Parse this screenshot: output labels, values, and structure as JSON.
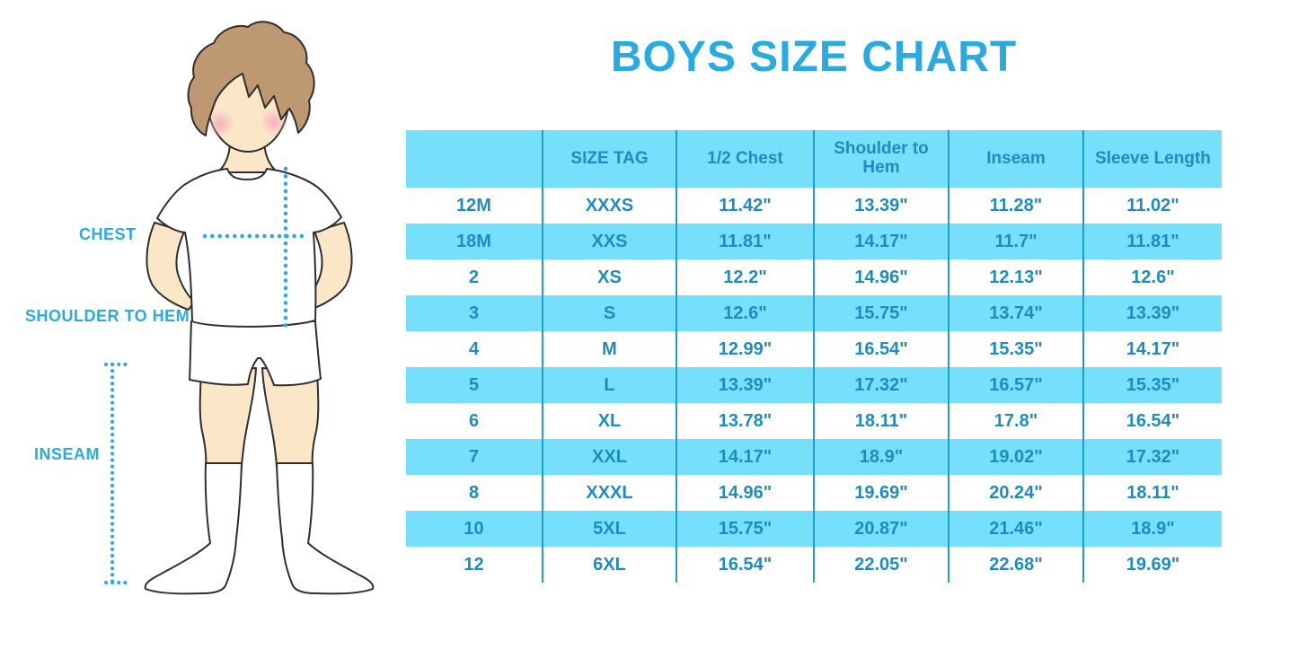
{
  "title": "BOYS SIZE CHART",
  "illustration": {
    "labels": {
      "chest": "CHEST",
      "shoulder_to_hem": "SHOULDER TO HEM",
      "inseam": "INSEAM"
    }
  },
  "chart_data": {
    "type": "table",
    "title": "BOYS SIZE CHART",
    "headers": [
      "",
      "SIZE TAG",
      "1/2 Chest",
      "Shoulder to Hem",
      "Inseam",
      "Sleeve Length"
    ],
    "rows": [
      [
        "12M",
        "XXXS",
        "11.42\"",
        "13.39\"",
        "11.28\"",
        "11.02\""
      ],
      [
        "18M",
        "XXS",
        "11.81\"",
        "14.17\"",
        "11.7\"",
        "11.81\""
      ],
      [
        "2",
        "XS",
        "12.2\"",
        "14.96\"",
        "12.13\"",
        "12.6\""
      ],
      [
        "3",
        "S",
        "12.6\"",
        "15.75\"",
        "13.74\"",
        "13.39\""
      ],
      [
        "4",
        "M",
        "12.99\"",
        "16.54\"",
        "15.35\"",
        "14.17\""
      ],
      [
        "5",
        "L",
        "13.39\"",
        "17.32\"",
        "16.57\"",
        "15.35\""
      ],
      [
        "6",
        "XL",
        "13.78\"",
        "18.11\"",
        "17.8\"",
        "16.54\""
      ],
      [
        "7",
        "XXL",
        "14.17\"",
        "18.9\"",
        "19.02\"",
        "17.32\""
      ],
      [
        "8",
        "XXXL",
        "14.96\"",
        "19.69\"",
        "20.24\"",
        "18.11\""
      ],
      [
        "10",
        "5XL",
        "15.75\"",
        "20.87\"",
        "21.46\"",
        "18.9\""
      ],
      [
        "12",
        "6XL",
        "16.54\"",
        "22.05\"",
        "22.68\"",
        "19.69\""
      ]
    ]
  },
  "colors": {
    "accent_blue": "#29ABE2",
    "row_fill": "#76DFFB",
    "table_text": "#1E8CBE",
    "divider": "#1E9FD0",
    "hair": "#BE9870",
    "skin": "#FBE7C7",
    "blush": "#F2A9BC"
  }
}
